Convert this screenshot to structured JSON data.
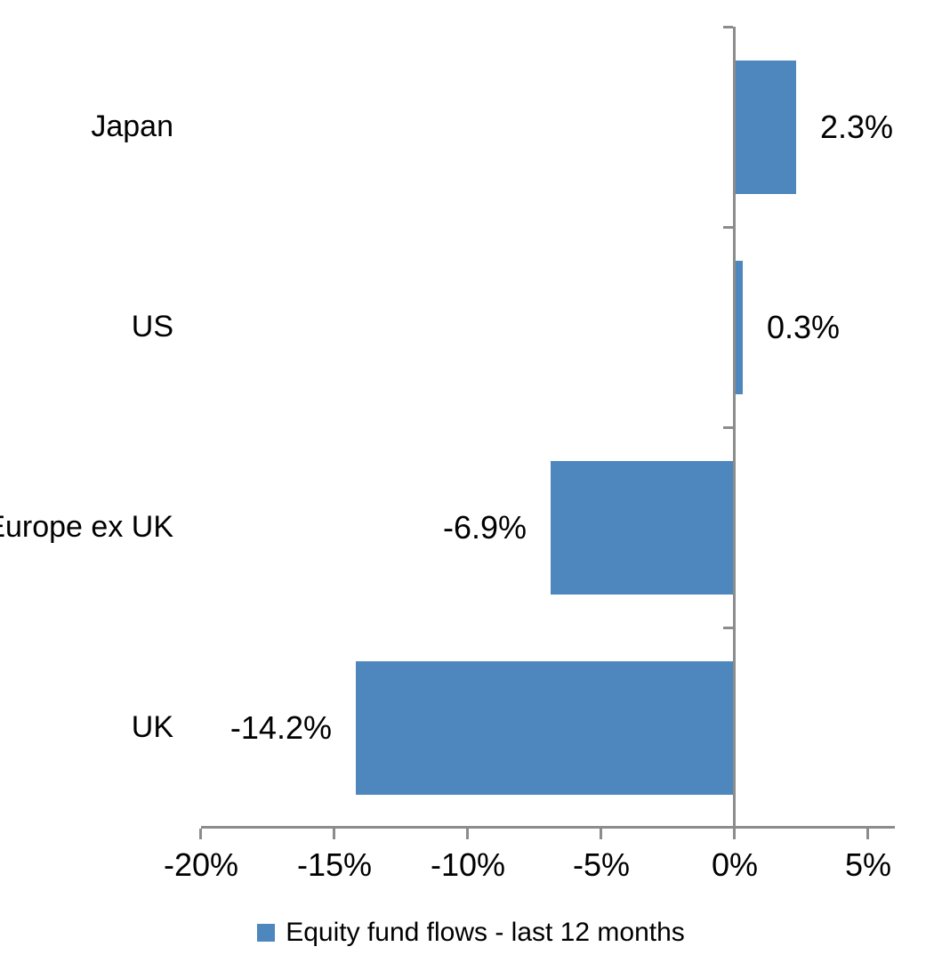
{
  "chart_data": {
    "type": "bar",
    "orientation": "horizontal",
    "title": "",
    "categories": [
      "Japan",
      "US",
      "Europe ex UK",
      "UK"
    ],
    "series": [
      {
        "name": "Equity fund flows - last 12 months",
        "values": [
          2.3,
          0.3,
          -6.9,
          -14.2
        ],
        "data_labels": [
          "2.3%",
          "0.3%",
          "-6.9%",
          "-14.2%"
        ]
      }
    ],
    "x_axis": {
      "min": -20,
      "max": 6,
      "major_unit": 5,
      "tick_values": [
        -20,
        -15,
        -10,
        -5,
        0,
        5
      ],
      "tick_labels": [
        "-20%",
        "-15%",
        "-10%",
        "-5%",
        "0%",
        "5%"
      ]
    },
    "grid": "off",
    "legend_position": "bottom",
    "legend_label": "Equity fund flows - last 12 months",
    "colors": {
      "bar": "#4E87BE",
      "axis": "#8C8C8C",
      "text": "#000000",
      "background": "#FFFFFF"
    }
  }
}
